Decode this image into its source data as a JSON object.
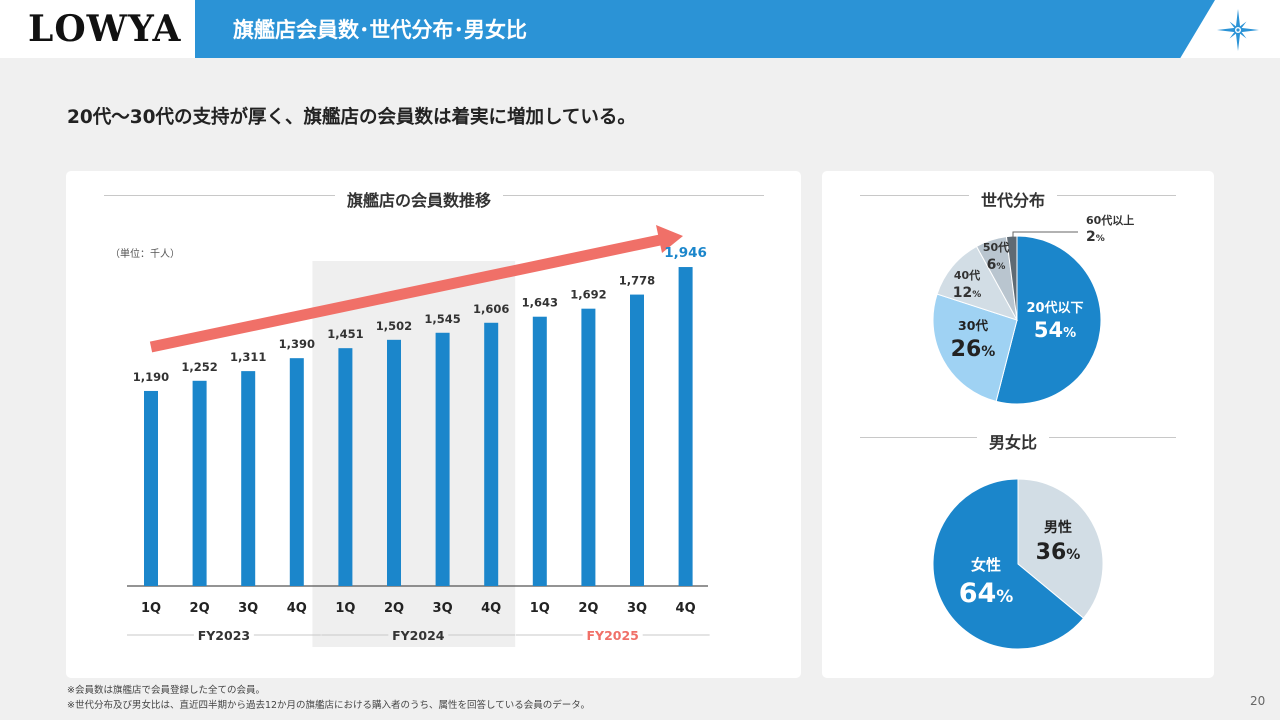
{
  "brand": {
    "logo_text": "LOWYA"
  },
  "header": {
    "title": "旗艦店会員数･世代分布･男女比"
  },
  "lead": "20代～30代の支持が厚く、旗艦店の会員数は着実に増加している。",
  "colors": {
    "blue": "#1b86cb",
    "light_blue": "#9fd2f3",
    "grey_blue": "#d2dde5",
    "arrow": "#f07068",
    "fy2025": "#f07068",
    "header": "#2b93d6"
  },
  "left_panel": {
    "title": "旗艦店の会員数推移",
    "unit": "（単位：千人）"
  },
  "right_panel": {
    "generation_title": "世代分布",
    "gender_title": "男女比"
  },
  "chart_data": [
    {
      "type": "bar",
      "title": "旗艦店の会員数推移",
      "unit_label": "（単位：千人）",
      "categories": [
        "1Q",
        "2Q",
        "3Q",
        "4Q",
        "1Q",
        "2Q",
        "3Q",
        "4Q",
        "1Q",
        "2Q",
        "3Q",
        "4Q"
      ],
      "values": [
        1190,
        1252,
        1311,
        1390,
        1451,
        1502,
        1545,
        1606,
        1643,
        1692,
        1778,
        1946
      ],
      "labels": [
        "1,190",
        "1,252",
        "1,311",
        "1,390",
        "1,451",
        "1,502",
        "1,545",
        "1,606",
        "1,643",
        "1,692",
        "1,778",
        "1,946"
      ],
      "groups": [
        {
          "name": "FY2023",
          "start": 0,
          "end": 3,
          "highlight": false
        },
        {
          "name": "FY2024",
          "start": 4,
          "end": 7,
          "highlight": true
        },
        {
          "name": "FY2025",
          "start": 8,
          "end": 11,
          "highlight": false
        }
      ],
      "ylim": [
        0,
        2050
      ],
      "grid": false,
      "legend": "none"
    },
    {
      "type": "pie",
      "title": "世代分布",
      "slices": [
        {
          "label": "20代以下",
          "value": 54,
          "pct": "54",
          "color": "#1b86cb"
        },
        {
          "label": "30代",
          "value": 26,
          "pct": "26",
          "color": "#9fd2f3"
        },
        {
          "label": "40代",
          "value": 12,
          "pct": "12",
          "color": "#d2dde5"
        },
        {
          "label": "50代",
          "value": 6,
          "pct": "6",
          "color": "#b9c5cf"
        },
        {
          "label": "60代以上",
          "value": 2,
          "pct": "2",
          "color": "#5f6a73"
        }
      ]
    },
    {
      "type": "pie",
      "title": "男女比",
      "slices": [
        {
          "label": "男性",
          "value": 36,
          "pct": "36",
          "color": "#d2dde5"
        },
        {
          "label": "女性",
          "value": 64,
          "pct": "64",
          "color": "#1b86cb"
        }
      ]
    }
  ],
  "notes": [
    "※会員数は旗艦店で会員登録した全ての会員。",
    "※世代分布及び男女比は、直近四半期から過去12か月の旗艦店における購入者のうち、属性を回答している会員のデータ。"
  ],
  "page_number": "20"
}
